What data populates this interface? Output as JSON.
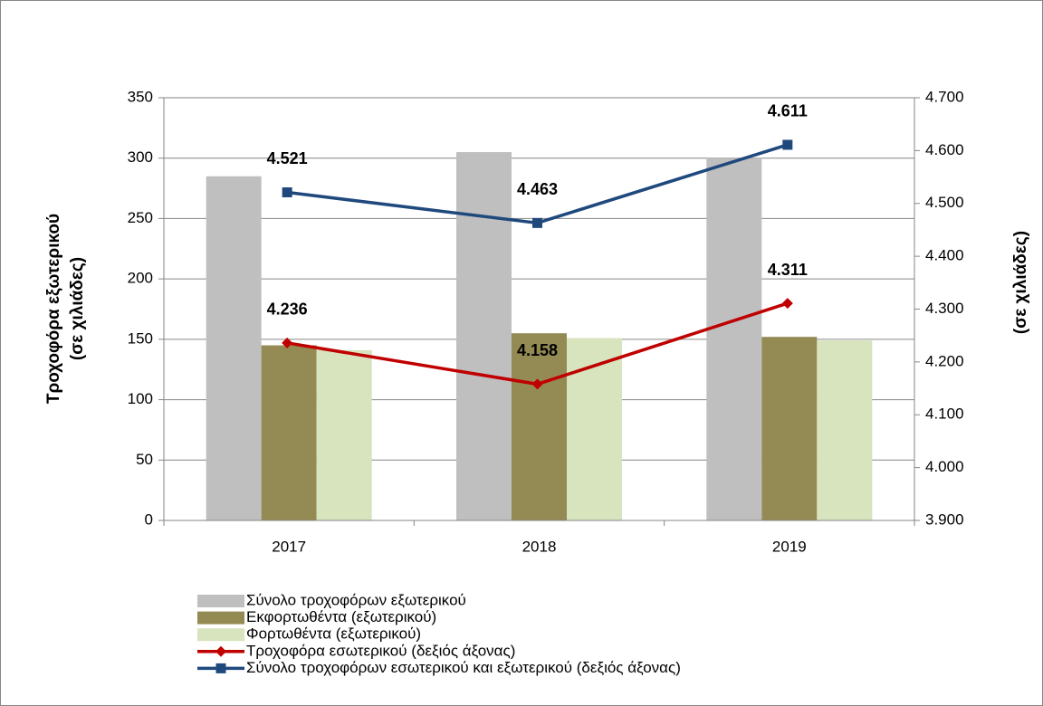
{
  "chart_data": {
    "type": "bar-line",
    "ylabel": [
      "Τροχοφόρα εξωτερικού",
      "(σε χιλιάδες)"
    ],
    "y2label": "(σε χιλιάδες)",
    "categories": [
      "2017",
      "2018",
      "2019"
    ],
    "series": [
      {
        "name": "Σύνολο τροχοφόρων εξωτερικού",
        "type": "bar",
        "color": "#bfbfbf",
        "values": [
          285,
          305,
          300
        ]
      },
      {
        "name": "Εκφορτωθέντα (εξωτερικού)",
        "type": "bar",
        "color": "#948a54",
        "values": [
          145,
          155,
          152
        ]
      },
      {
        "name": "Φορτωθέντα  (εξωτερικού)",
        "type": "bar",
        "color": "#d7e4bd",
        "values": [
          141,
          151,
          149
        ]
      },
      {
        "name": "Τροχοφόρα εσωτερικού (δεξιός άξονας)",
        "type": "line",
        "axis": "y2",
        "marker": "diamond",
        "color": "#c00000",
        "values": [
          4.236,
          4.158,
          4.311
        ],
        "value_labels": [
          "4.236",
          "4.158",
          "4.311"
        ]
      },
      {
        "name": "Σύνολο τροχοφόρων εσωτερικού και εξωτερικού (δεξιός άξονας)",
        "type": "line",
        "axis": "y2",
        "marker": "square",
        "color": "#1f497d",
        "values": [
          4.521,
          4.463,
          4.611
        ],
        "value_labels": [
          "4.521",
          "4.463",
          "4.611"
        ]
      }
    ],
    "ylim": [
      0,
      350
    ],
    "yticks": [
      0,
      50,
      100,
      150,
      200,
      250,
      300,
      350
    ],
    "y2lim": [
      3.9,
      4.7
    ],
    "y2ticks": [
      {
        "value": 3.9,
        "label": "3.900"
      },
      {
        "value": 4.0,
        "label": "4.000"
      },
      {
        "value": 4.1,
        "label": "4.100"
      },
      {
        "value": 4.2,
        "label": "4.200"
      },
      {
        "value": 4.3,
        "label": "4.300"
      },
      {
        "value": 4.4,
        "label": "4.400"
      },
      {
        "value": 4.5,
        "label": "4.500"
      },
      {
        "value": 4.6,
        "label": "4.600"
      },
      {
        "value": 4.7,
        "label": "4.700"
      }
    ],
    "grid": true,
    "legend": "bottom-left"
  }
}
